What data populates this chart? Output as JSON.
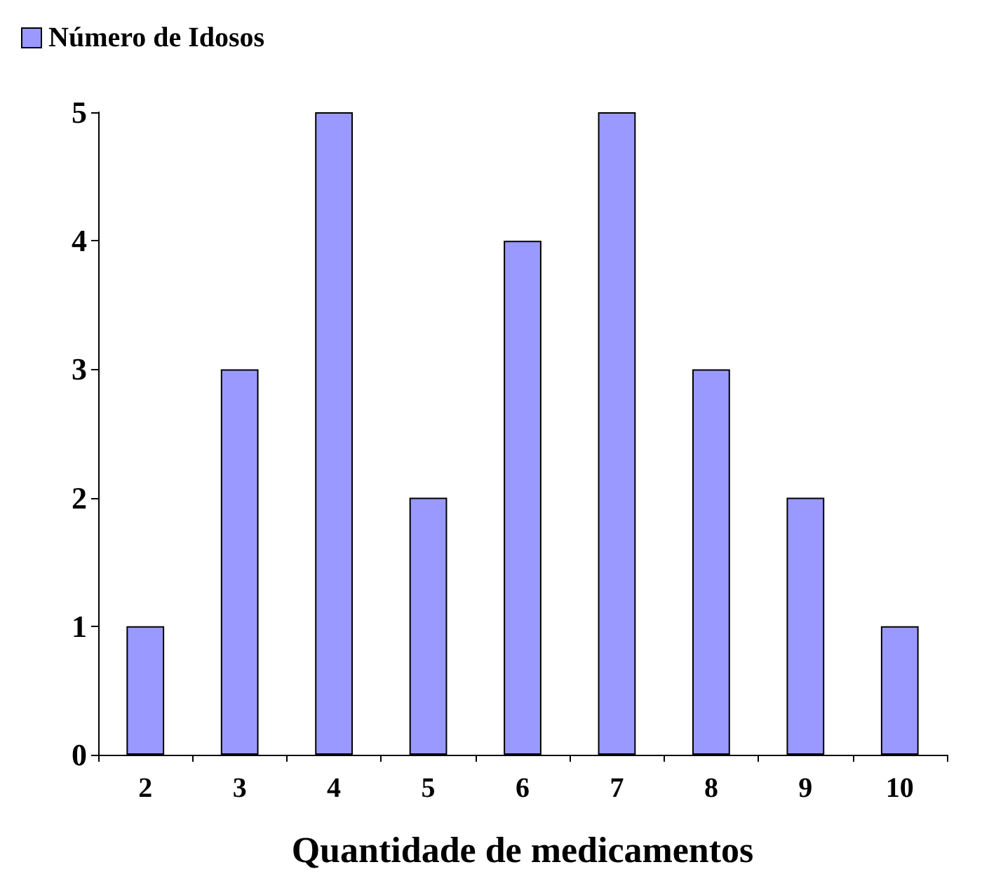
{
  "chart_data": {
    "type": "bar",
    "xlabel": "Quantidade de medicamentos",
    "categories": [
      "2",
      "3",
      "4",
      "5",
      "6",
      "7",
      "8",
      "9",
      "10"
    ],
    "series": [
      {
        "name": "Número de Idosos",
        "color": "#9999ff",
        "values": [
          1,
          3,
          5,
          2,
          4,
          5,
          3,
          2,
          1
        ]
      }
    ],
    "ylim": [
      0,
      5
    ],
    "yticks": [
      0,
      1,
      2,
      3,
      4,
      5
    ],
    "grid": false,
    "legend": "top left"
  }
}
